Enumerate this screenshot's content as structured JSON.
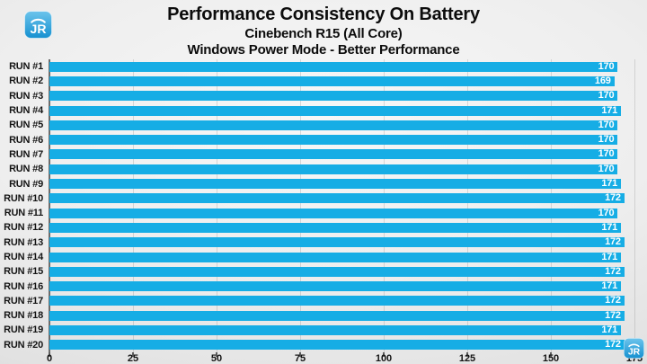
{
  "branding": {
    "logo_text": "JR",
    "logo_color_top": "#6cc4ec",
    "logo_color_bottom": "#1590d0"
  },
  "chart_data": {
    "type": "bar",
    "orientation": "horizontal",
    "title": "Performance Consistency On Battery",
    "subtitle": "Cinebench R15 (All Core)",
    "subtitle2": "Windows Power Mode - Better Performance",
    "categories": [
      "RUN #1",
      "RUN #2",
      "RUN #3",
      "RUN #4",
      "RUN #5",
      "RUN #6",
      "RUN #7",
      "RUN #8",
      "RUN #9",
      "RUN #10",
      "RUN #11",
      "RUN #12",
      "RUN #13",
      "RUN #14",
      "RUN #15",
      "RUN #16",
      "RUN #17",
      "RUN #18",
      "RUN #19",
      "RUN #20"
    ],
    "values": [
      170,
      169,
      170,
      171,
      170,
      170,
      170,
      170,
      171,
      172,
      170,
      171,
      172,
      171,
      172,
      171,
      172,
      172,
      171,
      172
    ],
    "xlabel": "",
    "ylabel": "",
    "xlim": [
      0,
      175
    ],
    "x_ticks": [
      0,
      25,
      50,
      75,
      100,
      125,
      150,
      175
    ],
    "grid": true,
    "legend_position": "none",
    "bar_color": "#16ADE5",
    "value_label_color": "#FFFFFF"
  }
}
